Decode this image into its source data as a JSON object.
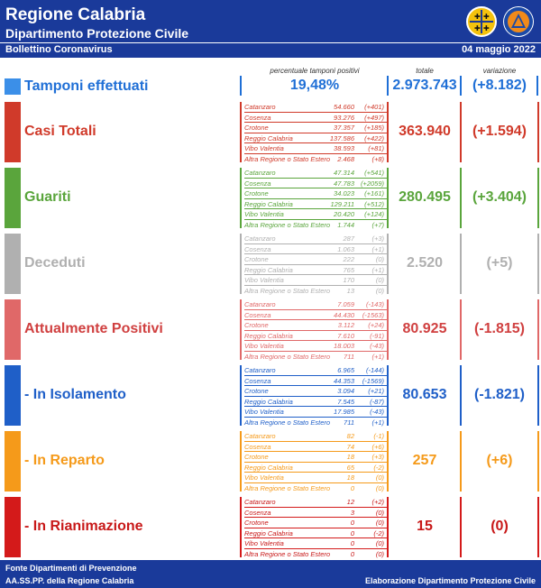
{
  "header": {
    "title": "Regione Calabria",
    "subtitle": "Dipartimento Protezione Civile",
    "bulletin": "Bollettino Coronavirus",
    "date": "04 maggio 2022"
  },
  "columns": {
    "percent": "percentuale tamponi positivi",
    "total": "totale",
    "variation": "variazione"
  },
  "tamponi": {
    "label": "Tamponi effettuati",
    "percent": "19,48%",
    "total": "2.973.743",
    "variation": "(+8.182)",
    "color": "#1f6fd6"
  },
  "sections": [
    {
      "label": "Casi Totali",
      "color": "#d03a2a",
      "total": "363.940",
      "variation": "(+1.594)",
      "rows": [
        {
          "name": "Catanzaro",
          "value": "54.660",
          "delta": "(+401)"
        },
        {
          "name": "Cosenza",
          "value": "93.276",
          "delta": "(+497)"
        },
        {
          "name": "Crotone",
          "value": "37.357",
          "delta": "(+185)"
        },
        {
          "name": "Reggio Calabria",
          "value": "137.586",
          "delta": "(+422)"
        },
        {
          "name": "Vibo Valentia",
          "value": "38.593",
          "delta": "(+81)"
        },
        {
          "name": "Altra Regione o Stato Estero",
          "value": "2.468",
          "delta": "(+8)"
        }
      ]
    },
    {
      "label": "Guariti",
      "color": "#5aa53c",
      "total": "280.495",
      "variation": "(+3.404)",
      "rows": [
        {
          "name": "Catanzaro",
          "value": "47.314",
          "delta": "(+541)"
        },
        {
          "name": "Cosenza",
          "value": "47.783",
          "delta": "(+2059)"
        },
        {
          "name": "Crotone",
          "value": "34.023",
          "delta": "(+161)"
        },
        {
          "name": "Reggio Calabria",
          "value": "129.211",
          "delta": "(+512)"
        },
        {
          "name": "Vibo Valentia",
          "value": "20.420",
          "delta": "(+124)"
        },
        {
          "name": "Altra Regione o Stato Estero",
          "value": "1.744",
          "delta": "(+7)"
        }
      ]
    },
    {
      "label": "Deceduti",
      "color": "#b0b0b0",
      "total": "2.520",
      "variation": "(+5)",
      "rows": [
        {
          "name": "Catanzaro",
          "value": "287",
          "delta": "(+3)"
        },
        {
          "name": "Cosenza",
          "value": "1.063",
          "delta": "(+1)"
        },
        {
          "name": "Crotone",
          "value": "222",
          "delta": "(0)"
        },
        {
          "name": "Reggio Calabria",
          "value": "765",
          "delta": "(+1)"
        },
        {
          "name": "Vibo Valentia",
          "value": "170",
          "delta": "(0)"
        },
        {
          "name": "Altra Regione o Stato Estero",
          "value": "13",
          "delta": "(0)"
        }
      ]
    },
    {
      "label": "Attualmente Positivi",
      "color": "#e06868",
      "labelColor": "#d04040",
      "total": "80.925",
      "variation": "(-1.815)",
      "rows": [
        {
          "name": "Catanzaro",
          "value": "7.059",
          "delta": "(-143)"
        },
        {
          "name": "Cosenza",
          "value": "44.430",
          "delta": "(-1563)"
        },
        {
          "name": "Crotone",
          "value": "3.112",
          "delta": "(+24)"
        },
        {
          "name": "Reggio Calabria",
          "value": "7.610",
          "delta": "(-91)"
        },
        {
          "name": "Vibo Valentia",
          "value": "18.003",
          "delta": "(-43)"
        },
        {
          "name": "Altra Regione o Stato Estero",
          "value": "711",
          "delta": "(+1)"
        }
      ]
    },
    {
      "label": "- In Isolamento",
      "color": "#1f5fc8",
      "total": "80.653",
      "variation": "(-1.821)",
      "rows": [
        {
          "name": "Catanzaro",
          "value": "6.965",
          "delta": "(-144)"
        },
        {
          "name": "Cosenza",
          "value": "44.353",
          "delta": "(-1569)"
        },
        {
          "name": "Crotone",
          "value": "3.094",
          "delta": "(+21)"
        },
        {
          "name": "Reggio Calabria",
          "value": "7.545",
          "delta": "(-87)"
        },
        {
          "name": "Vibo Valentia",
          "value": "17.985",
          "delta": "(-43)"
        },
        {
          "name": "Altra Regione o Stato Estero",
          "value": "711",
          "delta": "(+1)"
        }
      ]
    },
    {
      "label": "- In Reparto",
      "color": "#f59a1a",
      "total": "257",
      "variation": "(+6)",
      "rows": [
        {
          "name": "Catanzaro",
          "value": "82",
          "delta": "(-1)"
        },
        {
          "name": "Cosenza",
          "value": "74",
          "delta": "(+6)"
        },
        {
          "name": "Crotone",
          "value": "18",
          "delta": "(+3)"
        },
        {
          "name": "Reggio Calabria",
          "value": "65",
          "delta": "(-2)"
        },
        {
          "name": "Vibo Valentia",
          "value": "18",
          "delta": "(0)"
        },
        {
          "name": "Altra Regione o Stato Estero",
          "value": "0",
          "delta": "(0)"
        }
      ]
    },
    {
      "label": "- In Rianimazione",
      "color": "#d41a1a",
      "labelColor": "#c81818",
      "textColor": "#c81818",
      "total": "15",
      "variation": "(0)",
      "rows": [
        {
          "name": "Catanzaro",
          "value": "12",
          "delta": "(+2)"
        },
        {
          "name": "Cosenza",
          "value": "3",
          "delta": "(0)"
        },
        {
          "name": "Crotone",
          "value": "0",
          "delta": "(0)"
        },
        {
          "name": "Reggio Calabria",
          "value": "0",
          "delta": "(-2)"
        },
        {
          "name": "Vibo Valentia",
          "value": "0",
          "delta": "(0)"
        },
        {
          "name": "Altra Regione o Stato Estero",
          "value": "0",
          "delta": "(0)"
        }
      ]
    }
  ],
  "footer": {
    "source_line1": "Fonte Dipartimenti di Prevenzione",
    "source_line2": "AA.SS.PP.  della Regione Calabria",
    "elaboration": "Elaborazione Dipartimento Protezione Civile"
  }
}
